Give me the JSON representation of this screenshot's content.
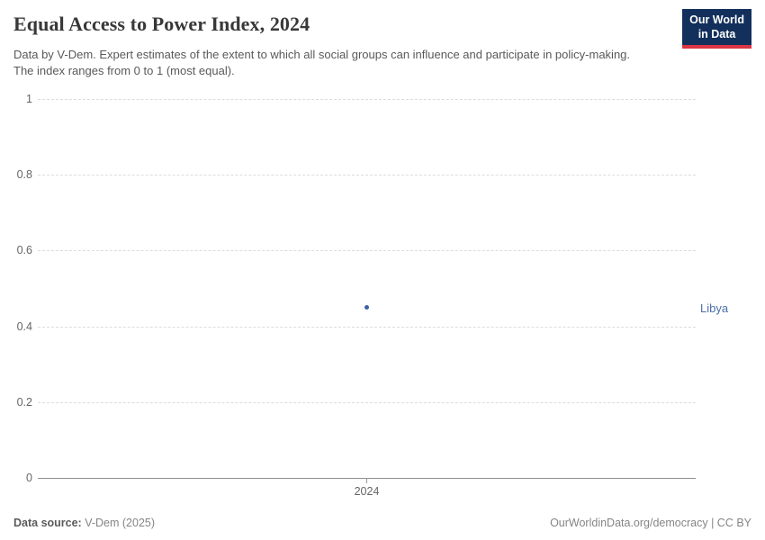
{
  "header": {
    "title": "Equal Access to Power Index, 2024",
    "subtitle": "Data by V-Dem. Expert estimates of the extent to which all social groups can influence and participate in policy-making. The index ranges from 0 to 1 (most equal).",
    "logo_line1": "Our World",
    "logo_line2": "in Data",
    "logo_bg_color": "#12305b",
    "logo_accent_color": "#dc3545"
  },
  "chart_data": {
    "type": "scatter",
    "title": "Equal Access to Power Index, 2024",
    "series": [
      {
        "name": "Libya",
        "x": [
          2024
        ],
        "y": [
          0.45
        ]
      }
    ],
    "xticks": [
      "2024"
    ],
    "yticks": [
      1,
      0.8,
      0.6,
      0.4,
      0.2,
      0
    ],
    "ylim": [
      0,
      1
    ],
    "grid": "horizontal-dashed",
    "legend_position": "right-of-point",
    "point_color": "#3d62a5",
    "series_label_color": "#4c6fa8"
  },
  "footer": {
    "source_label": "Data source:",
    "source_value": "V-Dem (2025)",
    "link_text": "OurWorldinData.org/democracy | CC BY"
  }
}
